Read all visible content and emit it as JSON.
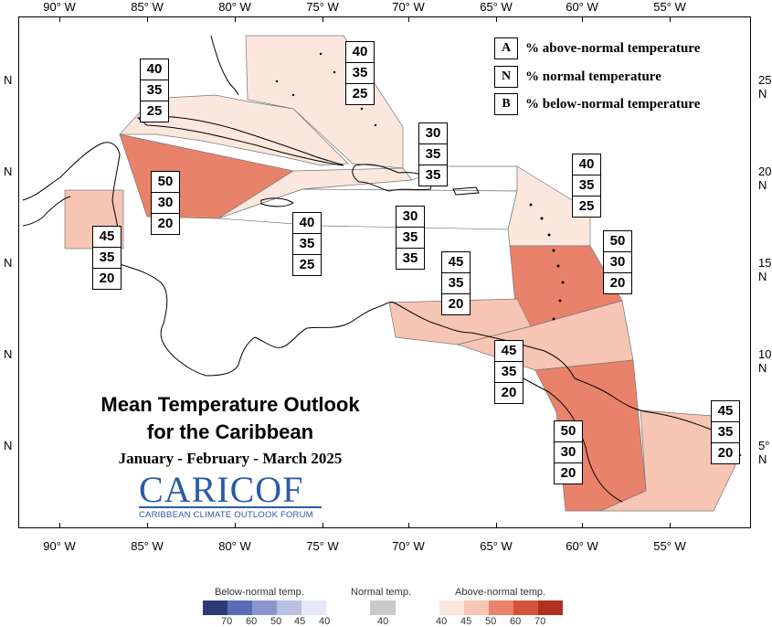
{
  "map": {
    "title": "Mean Temperature Outlook",
    "title2": "for the Caribbean",
    "period": "January - February - March 2025",
    "logo": {
      "name": "CARICOF",
      "tagline": "CARIBBEAN CLIMATE OUTLOOK FORUM"
    },
    "lon_labels": [
      "90° W",
      "85° W",
      "80° W",
      "75° W",
      "70° W",
      "65° W",
      "60° W",
      "55° W"
    ],
    "lat_labels": [
      "25° N",
      "20° N",
      "15° N",
      "10° N",
      "5° N"
    ],
    "lat_left_suffix": "N",
    "key": [
      {
        "k": "A",
        "label": "% above-normal temperature"
      },
      {
        "k": "N",
        "label": "% normal temperature"
      },
      {
        "k": "B",
        "label": "% below-normal temperature"
      }
    ],
    "regions": [
      {
        "name": "gulf-bahamas-west",
        "a": "40",
        "n": "35",
        "b": "25",
        "color": "#fbe7de"
      },
      {
        "name": "bahamas",
        "a": "40",
        "n": "35",
        "b": "25",
        "color": "#fbe7de"
      },
      {
        "name": "western-caribbean",
        "a": "50",
        "n": "30",
        "b": "20",
        "color": "#e9826b"
      },
      {
        "name": "belize",
        "a": "45",
        "n": "35",
        "b": "20",
        "color": "#f7c5b3"
      },
      {
        "name": "jamaica-cayman",
        "a": "40",
        "n": "35",
        "b": "25",
        "color": "#fbe7de"
      },
      {
        "name": "hispaniola-north",
        "a": "30",
        "n": "35",
        "b": "35",
        "color": "#ffffff"
      },
      {
        "name": "hispaniola-south",
        "a": "30",
        "n": "35",
        "b": "35",
        "color": "#ffffff"
      },
      {
        "name": "leeward-islands",
        "a": "40",
        "n": "35",
        "b": "25",
        "color": "#fbe7de"
      },
      {
        "name": "windward-islands",
        "a": "50",
        "n": "30",
        "b": "20",
        "color": "#e9826b"
      },
      {
        "name": "abc-islands",
        "a": "45",
        "n": "35",
        "b": "20",
        "color": "#f7c5b3"
      },
      {
        "name": "trinidad-venezuela",
        "a": "45",
        "n": "35",
        "b": "20",
        "color": "#f7c5b3"
      },
      {
        "name": "guyana",
        "a": "50",
        "n": "30",
        "b": "20",
        "color": "#e9826b"
      },
      {
        "name": "suriname-guiana",
        "a": "45",
        "n": "35",
        "b": "20",
        "color": "#f7c5b3"
      }
    ]
  },
  "colorbar": {
    "below_title": "Below-normal temp.",
    "normal_title": "Normal temp.",
    "above_title": "Above-normal temp.",
    "below_ticks": [
      "70",
      "60",
      "50",
      "45",
      "40"
    ],
    "normal_ticks": [
      "40"
    ],
    "above_ticks": [
      "40",
      "45",
      "50",
      "60",
      "70"
    ],
    "below_colors": [
      "#2e3a78",
      "#5a6bb8",
      "#8b96d0",
      "#b9c0e4",
      "#e6e8f6"
    ],
    "normal_color": "#c9c9c9",
    "above_colors": [
      "#fbe7de",
      "#f7c5b3",
      "#e9826b",
      "#d4523a",
      "#b0301f"
    ]
  }
}
